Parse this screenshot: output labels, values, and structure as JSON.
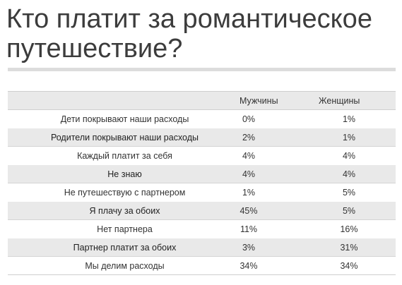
{
  "title": "Кто платит за романтическое путешествие?",
  "chart_data": {
    "type": "table",
    "title": "Кто платит за романтическое путешествие?",
    "columns": [
      "",
      "Мужчины",
      "Женщины"
    ],
    "rows": [
      {
        "label": "Дети покрывают наши расходы",
        "men": "0%",
        "women": "1%"
      },
      {
        "label": "Родители покрывают наши расходы",
        "men": "2%",
        "women": "1%"
      },
      {
        "label": "Каждый платит за себя",
        "men": "4%",
        "women": "4%"
      },
      {
        "label": "Не знаю",
        "men": "4%",
        "women": "4%"
      },
      {
        "label": "Не путешествую с партнером",
        "men": "1%",
        "women": "5%"
      },
      {
        "label": "Я плачу за обоих",
        "men": "45%",
        "women": "5%"
      },
      {
        "label": "Нет партнера",
        "men": "11%",
        "women": "16%"
      },
      {
        "label": "Партнер платит за обоих",
        "men": "3%",
        "women": "31%"
      },
      {
        "label": "Мы делим расходы",
        "men": "34%",
        "women": "34%"
      }
    ],
    "series": [
      {
        "name": "Мужчины",
        "values": [
          0,
          2,
          4,
          4,
          1,
          45,
          11,
          3,
          34
        ]
      },
      {
        "name": "Женщины",
        "values": [
          1,
          1,
          4,
          4,
          5,
          5,
          16,
          31,
          34
        ]
      }
    ],
    "categories": [
      "Дети покрывают наши расходы",
      "Родители покрывают наши расходы",
      "Каждый платит за себя",
      "Не знаю",
      "Не путешествую с партнером",
      "Я плачу за обоих",
      "Нет партнера",
      "Партнер платит за обоих",
      "Мы делим расходы"
    ],
    "unit": "%"
  },
  "colors": {
    "title": "#3c3c3c",
    "shaded_row": "#e9e9e9",
    "rule": "#dcdcdc",
    "text": "#333333"
  }
}
